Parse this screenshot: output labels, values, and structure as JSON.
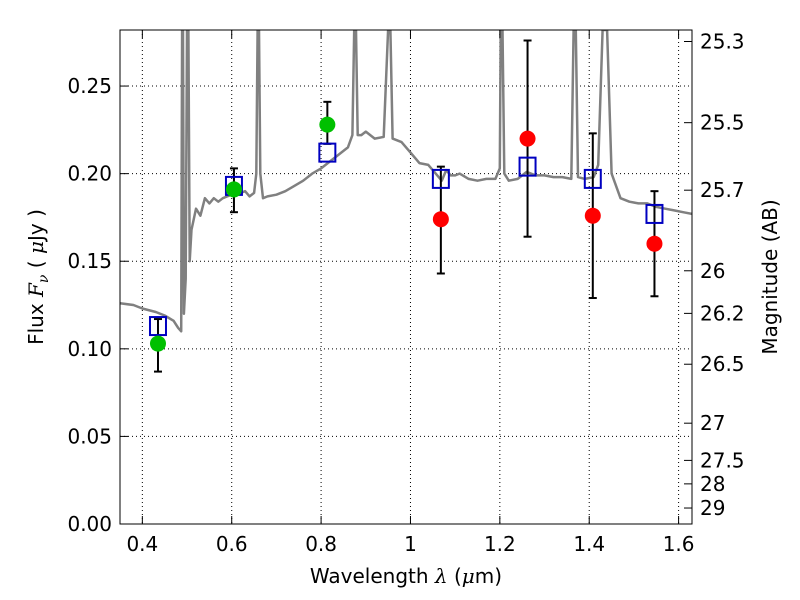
{
  "chart_data": {
    "type": "scatter",
    "xlabel": "Wavelength",
    "xlabel_symbol": "λ",
    "xlabel_unit_open": " (",
    "xlabel_unit_mu": "μ",
    "xlabel_unit_rest": "m)",
    "ylabel": "Flux",
    "ylabel_symbol": "F",
    "ylabel_sub": "ν",
    "ylabel_unit_open": "( ",
    "ylabel_unit_mu": "μ",
    "ylabel_unit_rest": "Jy )",
    "y2label": "Magnitude (AB)",
    "xlim": [
      0.35,
      1.63
    ],
    "ylim": [
      0.0,
      0.282
    ],
    "grid": true,
    "x_ticks": [
      {
        "v": 0.4,
        "label": "0.4"
      },
      {
        "v": 0.6,
        "label": "0.6"
      },
      {
        "v": 0.8,
        "label": "0.8"
      },
      {
        "v": 1.0,
        "label": "1"
      },
      {
        "v": 1.2,
        "label": "1.2"
      },
      {
        "v": 1.4,
        "label": "1.4"
      },
      {
        "v": 1.6,
        "label": "1.6"
      }
    ],
    "y_ticks": [
      {
        "v": 0.0,
        "label": "0.00"
      },
      {
        "v": 0.05,
        "label": "0.05"
      },
      {
        "v": 0.1,
        "label": "0.10"
      },
      {
        "v": 0.15,
        "label": "0.15"
      },
      {
        "v": 0.2,
        "label": "0.20"
      },
      {
        "v": 0.25,
        "label": "0.25"
      }
    ],
    "y2_ticks": [
      {
        "v": 25.3,
        "label": "25.3"
      },
      {
        "v": 25.5,
        "label": "25.5"
      },
      {
        "v": 25.7,
        "label": "25.7"
      },
      {
        "v": 26.0,
        "label": "26"
      },
      {
        "v": 26.2,
        "label": "26.2"
      },
      {
        "v": 26.5,
        "label": "26.5"
      },
      {
        "v": 27.0,
        "label": "27"
      },
      {
        "v": 27.5,
        "label": "27.5"
      },
      {
        "v": 28.0,
        "label": "28"
      },
      {
        "v": 29.0,
        "label": "29"
      }
    ],
    "series": [
      {
        "name": "model spectrum",
        "kind": "line",
        "color": "#808080",
        "points": [
          [
            0.35,
            0.126
          ],
          [
            0.38,
            0.125
          ],
          [
            0.4,
            0.123
          ],
          [
            0.43,
            0.121
          ],
          [
            0.45,
            0.119
          ],
          [
            0.47,
            0.116
          ],
          [
            0.48,
            0.112
          ],
          [
            0.487,
            0.11
          ],
          [
            0.489,
            0.282
          ],
          [
            0.491,
            0.282
          ],
          [
            0.493,
            0.12
          ],
          [
            0.497,
            0.14
          ],
          [
            0.5,
            0.282
          ],
          [
            0.503,
            0.282
          ],
          [
            0.506,
            0.15
          ],
          [
            0.51,
            0.168
          ],
          [
            0.52,
            0.18
          ],
          [
            0.53,
            0.176
          ],
          [
            0.54,
            0.186
          ],
          [
            0.55,
            0.183
          ],
          [
            0.56,
            0.186
          ],
          [
            0.57,
            0.184
          ],
          [
            0.58,
            0.186
          ],
          [
            0.59,
            0.187
          ],
          [
            0.6,
            0.188
          ],
          [
            0.61,
            0.188
          ],
          [
            0.62,
            0.189
          ],
          [
            0.63,
            0.19
          ],
          [
            0.64,
            0.187
          ],
          [
            0.65,
            0.189
          ],
          [
            0.655,
            0.2
          ],
          [
            0.658,
            0.282
          ],
          [
            0.661,
            0.282
          ],
          [
            0.664,
            0.2
          ],
          [
            0.67,
            0.186
          ],
          [
            0.68,
            0.187
          ],
          [
            0.7,
            0.188
          ],
          [
            0.72,
            0.19
          ],
          [
            0.74,
            0.193
          ],
          [
            0.76,
            0.196
          ],
          [
            0.78,
            0.2
          ],
          [
            0.8,
            0.203
          ],
          [
            0.82,
            0.207
          ],
          [
            0.84,
            0.211
          ],
          [
            0.86,
            0.215
          ],
          [
            0.87,
            0.222
          ],
          [
            0.874,
            0.282
          ],
          [
            0.878,
            0.282
          ],
          [
            0.882,
            0.222
          ],
          [
            0.89,
            0.222
          ],
          [
            0.9,
            0.224
          ],
          [
            0.92,
            0.22
          ],
          [
            0.94,
            0.221
          ],
          [
            0.95,
            0.282
          ],
          [
            0.955,
            0.282
          ],
          [
            0.96,
            0.22
          ],
          [
            0.98,
            0.218
          ],
          [
            1.0,
            0.212
          ],
          [
            1.02,
            0.206
          ],
          [
            1.04,
            0.205
          ],
          [
            1.06,
            0.199
          ],
          [
            1.07,
            0.196
          ],
          [
            1.08,
            0.202
          ],
          [
            1.09,
            0.199
          ],
          [
            1.1,
            0.199
          ],
          [
            1.11,
            0.2
          ],
          [
            1.13,
            0.197
          ],
          [
            1.15,
            0.196
          ],
          [
            1.17,
            0.197
          ],
          [
            1.19,
            0.197
          ],
          [
            1.2,
            0.203
          ],
          [
            1.202,
            0.282
          ],
          [
            1.206,
            0.282
          ],
          [
            1.21,
            0.2
          ],
          [
            1.22,
            0.196
          ],
          [
            1.24,
            0.197
          ],
          [
            1.26,
            0.201
          ],
          [
            1.28,
            0.199
          ],
          [
            1.3,
            0.199
          ],
          [
            1.32,
            0.198
          ],
          [
            1.34,
            0.198
          ],
          [
            1.36,
            0.197
          ],
          [
            1.365,
            0.282
          ],
          [
            1.37,
            0.282
          ],
          [
            1.375,
            0.198
          ],
          [
            1.39,
            0.197
          ],
          [
            1.41,
            0.198
          ],
          [
            1.42,
            0.205
          ],
          [
            1.43,
            0.282
          ],
          [
            1.44,
            0.282
          ],
          [
            1.45,
            0.2
          ],
          [
            1.47,
            0.186
          ],
          [
            1.49,
            0.184
          ],
          [
            1.51,
            0.183
          ],
          [
            1.53,
            0.183
          ],
          [
            1.55,
            0.181
          ],
          [
            1.57,
            0.18
          ],
          [
            1.59,
            0.179
          ],
          [
            1.61,
            0.178
          ],
          [
            1.63,
            0.177
          ]
        ]
      },
      {
        "name": "observed (green)",
        "kind": "markers",
        "marker": "circle",
        "color": "#00c000",
        "points": [
          [
            0.435,
            0.103
          ],
          [
            0.605,
            0.191
          ],
          [
            0.814,
            0.228
          ]
        ]
      },
      {
        "name": "observed (red)",
        "kind": "markers",
        "marker": "circle",
        "color": "#ff0000",
        "points": [
          [
            1.068,
            0.174
          ],
          [
            1.262,
            0.22
          ],
          [
            1.408,
            0.176
          ],
          [
            1.546,
            0.16
          ]
        ]
      },
      {
        "name": "model photometry",
        "kind": "markers",
        "marker": "square",
        "color": "#0000c0",
        "points": [
          [
            0.435,
            0.113
          ],
          [
            0.605,
            0.193
          ],
          [
            0.814,
            0.212
          ],
          [
            1.068,
            0.197
          ],
          [
            1.262,
            0.204
          ],
          [
            1.408,
            0.197
          ],
          [
            1.546,
            0.177
          ]
        ]
      },
      {
        "name": "error bars",
        "kind": "errorbars",
        "color": "#000000",
        "points": [
          {
            "x": 0.435,
            "lo": 0.087,
            "hi": 0.117
          },
          {
            "x": 0.605,
            "lo": 0.178,
            "hi": 0.203
          },
          {
            "x": 0.814,
            "lo": 0.217,
            "hi": 0.241
          },
          {
            "x": 1.068,
            "lo": 0.143,
            "hi": 0.204
          },
          {
            "x": 1.262,
            "lo": 0.164,
            "hi": 0.276
          },
          {
            "x": 1.408,
            "lo": 0.129,
            "hi": 0.223
          },
          {
            "x": 1.546,
            "lo": 0.13,
            "hi": 0.19
          }
        ]
      }
    ]
  }
}
